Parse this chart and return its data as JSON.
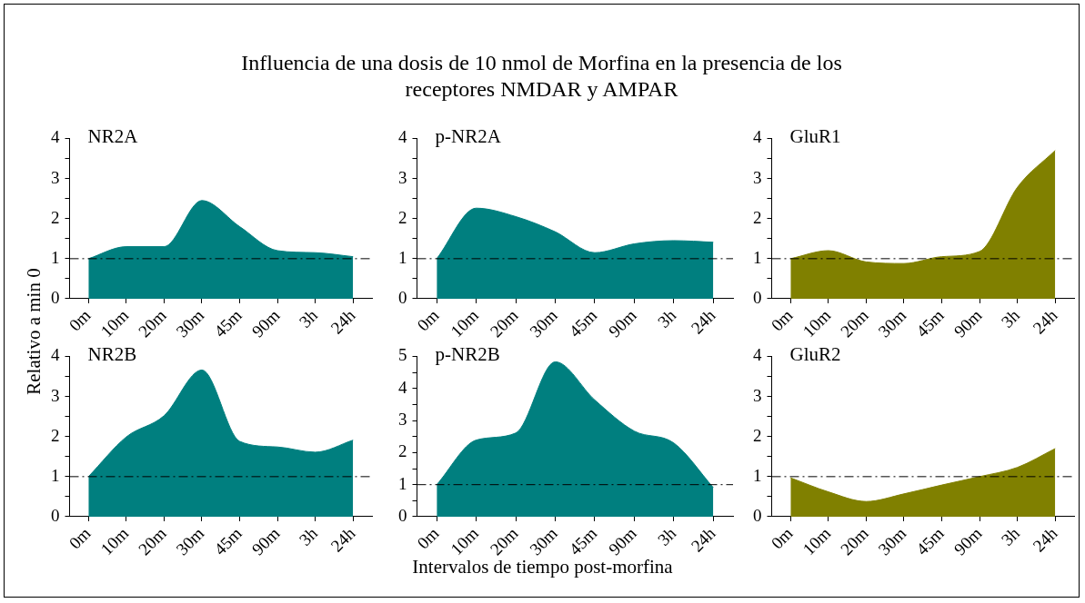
{
  "chart_data": [
    {
      "type": "other",
      "title": "Influencia de una dosis de 10 nmol de Morfina en la presencia de los receptores NMDAR y AMPAR",
      "xlabel": "Intervalos de tiempo post-morfina",
      "ylabel": "Relativo a min 0"
    },
    {
      "type": "area",
      "title": "NR2A",
      "categories": [
        "0m",
        "10m",
        "20m",
        "30m",
        "45m",
        "90m",
        "3h",
        "24h"
      ],
      "values": [
        1.0,
        1.3,
        1.3,
        2.45,
        1.8,
        1.2,
        1.15,
        1.05
      ],
      "color": "#007f7f",
      "ylim": [
        0,
        4
      ],
      "yticks": [
        0,
        {
          "value": 0.5,
          "label": null
        },
        1,
        {
          "value": 1.5,
          "label": null
        },
        2,
        {
          "value": 2.5,
          "label": null
        },
        3,
        {
          "value": 3.5,
          "label": null
        },
        4
      ],
      "ref_lines": [
        {
          "axis": "y",
          "value": 1,
          "color": "#000000",
          "line_style": "dashed"
        }
      ]
    },
    {
      "type": "area",
      "title": "p-NR2A",
      "categories": [
        "0m",
        "10m",
        "20m",
        "30m",
        "45m",
        "90m",
        "3h",
        "24h"
      ],
      "values": [
        1.0,
        2.26,
        2.05,
        1.67,
        1.15,
        1.37,
        1.45,
        1.41
      ],
      "color": "#007f7f",
      "ylim": [
        0,
        4
      ],
      "yticks": [
        0,
        {
          "value": 0.5,
          "label": null
        },
        1,
        {
          "value": 1.5,
          "label": null
        },
        2,
        {
          "value": 2.5,
          "label": null
        },
        3,
        {
          "value": 3.5,
          "label": null
        },
        4
      ],
      "ref_lines": [
        {
          "axis": "y",
          "value": 1,
          "color": "#000000",
          "line_style": "dashed"
        }
      ]
    },
    {
      "type": "area",
      "title": "GluR1",
      "categories": [
        "0m",
        "10m",
        "20m",
        "30m",
        "45m",
        "90m",
        "3h",
        "24h"
      ],
      "values": [
        1.0,
        1.2,
        0.92,
        0.88,
        1.05,
        1.18,
        2.78,
        3.7
      ],
      "color": "#808000",
      "ylim": [
        0,
        4
      ],
      "yticks": [
        0,
        {
          "value": 0.5,
          "label": null
        },
        1,
        {
          "value": 1.5,
          "label": null
        },
        2,
        {
          "value": 2.5,
          "label": null
        },
        3,
        {
          "value": 3.5,
          "label": null
        },
        4
      ],
      "ref_lines": [
        {
          "axis": "y",
          "value": 1,
          "color": "#000000",
          "line_style": "dashed"
        }
      ]
    },
    {
      "type": "area",
      "title": "NR2B",
      "categories": [
        "0m",
        "10m",
        "20m",
        "30m",
        "45m",
        "90m",
        "3h",
        "24h"
      ],
      "values": [
        1.0,
        1.99,
        2.52,
        3.66,
        1.88,
        1.74,
        1.61,
        1.91
      ],
      "color": "#007f7f",
      "ylim": [
        0,
        4
      ],
      "yticks": [
        0,
        {
          "value": 0.5,
          "label": null
        },
        1,
        {
          "value": 1.5,
          "label": null
        },
        2,
        {
          "value": 2.5,
          "label": null
        },
        3,
        {
          "value": 3.5,
          "label": null
        },
        4
      ],
      "ref_lines": [
        {
          "axis": "y",
          "value": 1,
          "color": "#000000",
          "line_style": "dashed"
        }
      ]
    },
    {
      "type": "area",
      "title": "p-NR2B",
      "categories": [
        "0m",
        "10m",
        "20m",
        "30m",
        "45m",
        "90m",
        "3h",
        "24h"
      ],
      "values": [
        1.0,
        2.39,
        2.61,
        4.83,
        3.64,
        2.67,
        2.3,
        0.91
      ],
      "color": "#007f7f",
      "ylim": [
        0,
        5
      ],
      "yticks": [
        0,
        {
          "value": 0.5,
          "label": null
        },
        1,
        {
          "value": 1.5,
          "label": null
        },
        2,
        {
          "value": 2.5,
          "label": null
        },
        3,
        {
          "value": 3.5,
          "label": null
        },
        4,
        {
          "value": 4.5,
          "label": null
        },
        5
      ],
      "ref_lines": [
        {
          "axis": "y",
          "value": 1,
          "color": "#000000",
          "line_style": "dashed"
        }
      ]
    },
    {
      "type": "area",
      "title": "GluR2",
      "categories": [
        "0m",
        "10m",
        "20m",
        "30m",
        "45m",
        "90m",
        "3h",
        "24h"
      ],
      "values": [
        0.97,
        0.62,
        0.38,
        0.57,
        0.79,
        1.0,
        1.23,
        1.7
      ],
      "color": "#808000",
      "ylim": [
        0,
        4
      ],
      "yticks": [
        0,
        {
          "value": 0.5,
          "label": null
        },
        1,
        {
          "value": 1.5,
          "label": null
        },
        2,
        {
          "value": 2.5,
          "label": null
        },
        3,
        {
          "value": 3.5,
          "label": null
        },
        4
      ],
      "ref_lines": [
        {
          "axis": "y",
          "value": 1,
          "color": "#000000",
          "line_style": "dashed"
        }
      ]
    }
  ]
}
